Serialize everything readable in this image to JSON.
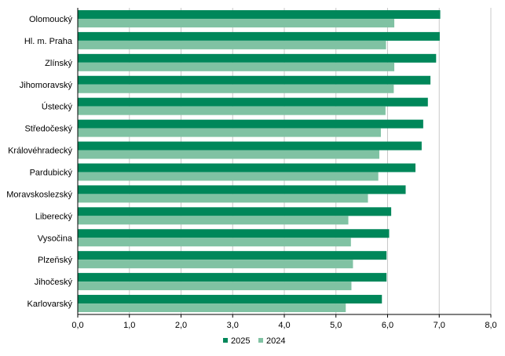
{
  "chart_data": {
    "type": "bar",
    "orientation": "horizontal",
    "categories": [
      "Olomoucký",
      "Hl. m. Praha",
      "Zlínský",
      "Jihomoravský",
      "Ústecký",
      "Středočeský",
      "Královéhradecký",
      "Pardubický",
      "Moravskoslezský",
      "Liberecký",
      "Vysočina",
      "Plzeňský",
      "Jihočeský",
      "Karlovarský"
    ],
    "series": [
      {
        "name": "2025",
        "color": "#00875a",
        "values": [
          7.02,
          7.01,
          6.94,
          6.83,
          6.78,
          6.69,
          6.66,
          6.54,
          6.35,
          6.07,
          6.03,
          5.98,
          5.98,
          5.89
        ]
      },
      {
        "name": "2024",
        "color": "#80c2a3",
        "values": [
          6.13,
          5.97,
          6.13,
          6.12,
          5.96,
          5.87,
          5.84,
          5.82,
          5.62,
          5.24,
          5.29,
          5.33,
          5.3,
          5.19
        ]
      }
    ],
    "xlim": [
      0,
      8
    ],
    "xticks": [
      "0,0",
      "1,0",
      "2,0",
      "3,0",
      "4,0",
      "5,0",
      "6,0",
      "7,0",
      "8,0"
    ],
    "grid": "vertical",
    "legend_position": "bottom"
  }
}
